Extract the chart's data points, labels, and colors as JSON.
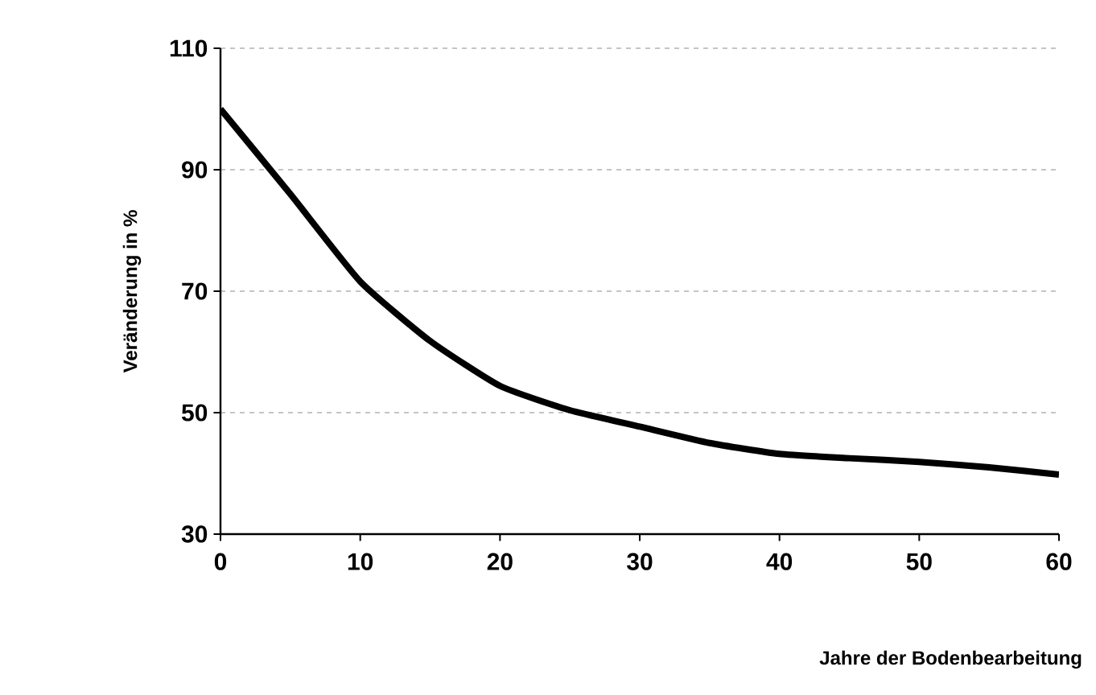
{
  "chart_data": {
    "type": "line",
    "xlabel": "Jahre der Bodenbearbeitung",
    "ylabel": "Veränderung in %",
    "x": [
      0,
      5,
      10,
      15,
      20,
      25,
      30,
      35,
      40,
      45,
      50,
      55,
      60
    ],
    "series": [
      {
        "color": "#000000",
        "values": [
          100,
          86,
          71.6,
          61.8,
          54.4,
          50.4,
          47.7,
          45,
          43.2,
          42.5,
          41.9,
          41,
          39.8
        ]
      }
    ],
    "xlim": [
      0,
      60
    ],
    "ylim": [
      30,
      110
    ],
    "xticks": [
      0,
      10,
      20,
      30,
      40,
      50,
      60
    ],
    "yticks": [
      30,
      50,
      70,
      90,
      110
    ],
    "grid": "y",
    "marker": "none",
    "line_style": "solid"
  }
}
